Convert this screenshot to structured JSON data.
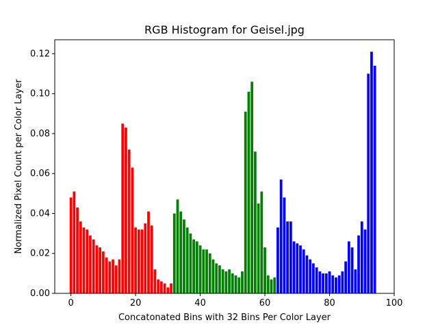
{
  "chart_data": {
    "type": "bar",
    "title": "RGB Histogram for Geisel.jpg",
    "xlabel": "Concatonated Bins with 32 Bins Per Color Layer",
    "ylabel": "Normalized Pixel Count per Color Layer",
    "xlim": [
      -5,
      100
    ],
    "ylim": [
      0,
      0.127
    ],
    "xticks": [
      0,
      20,
      40,
      60,
      80,
      100
    ],
    "xtick_labels": [
      "0",
      "20",
      "40",
      "60",
      "80",
      "100"
    ],
    "yticks": [
      0,
      0.02,
      0.04,
      0.06,
      0.08,
      0.1,
      0.12
    ],
    "ytick_labels": [
      "0.00",
      "0.02",
      "0.04",
      "0.06",
      "0.08",
      "0.10",
      "0.12"
    ],
    "grid": false,
    "series": [
      {
        "color": "#ff0000",
        "x": [
          0,
          1,
          2,
          3,
          4,
          5,
          6,
          7,
          8,
          9,
          10,
          11,
          12,
          13,
          14,
          15,
          16,
          17,
          18,
          19,
          20,
          21,
          22,
          23,
          24,
          25,
          26,
          27,
          28,
          29,
          30,
          31
        ],
        "values": [
          0.048,
          0.051,
          0.043,
          0.036,
          0.033,
          0.032,
          0.029,
          0.027,
          0.024,
          0.023,
          0.021,
          0.018,
          0.016,
          0.017,
          0.014,
          0.017,
          0.085,
          0.083,
          0.072,
          0.063,
          0.033,
          0.032,
          0.032,
          0.035,
          0.041,
          0.034,
          0.012,
          0.007,
          0.006,
          0.005,
          0.003,
          0.005
        ]
      },
      {
        "color": "#008000",
        "x": [
          32,
          33,
          34,
          35,
          36,
          37,
          38,
          39,
          40,
          41,
          42,
          43,
          44,
          45,
          46,
          47,
          48,
          49,
          50,
          51,
          52,
          53,
          54,
          55,
          56,
          57,
          58,
          59,
          60,
          61,
          62,
          63
        ],
        "values": [
          0.04,
          0.047,
          0.041,
          0.037,
          0.033,
          0.03,
          0.027,
          0.026,
          0.024,
          0.022,
          0.022,
          0.02,
          0.017,
          0.015,
          0.014,
          0.012,
          0.011,
          0.012,
          0.01,
          0.009,
          0.008,
          0.011,
          0.091,
          0.101,
          0.106,
          0.071,
          0.045,
          0.051,
          0.023,
          0.009,
          0.007,
          0.008
        ]
      },
      {
        "color": "#0000ff",
        "x": [
          64,
          65,
          66,
          67,
          68,
          69,
          70,
          71,
          72,
          73,
          74,
          75,
          76,
          77,
          78,
          79,
          80,
          81,
          82,
          83,
          84,
          85,
          86,
          87,
          88,
          89,
          90,
          91,
          92,
          93,
          94,
          95
        ],
        "values": [
          0.033,
          0.057,
          0.048,
          0.036,
          0.036,
          0.026,
          0.025,
          0.024,
          0.022,
          0.019,
          0.017,
          0.015,
          0.013,
          0.011,
          0.01,
          0.01,
          0.011,
          0.009,
          0.008,
          0.009,
          0.011,
          0.016,
          0.026,
          0.023,
          0.012,
          0.029,
          0.036,
          0.032,
          0.11,
          0.121,
          0.114,
          0.0
        ]
      }
    ]
  }
}
